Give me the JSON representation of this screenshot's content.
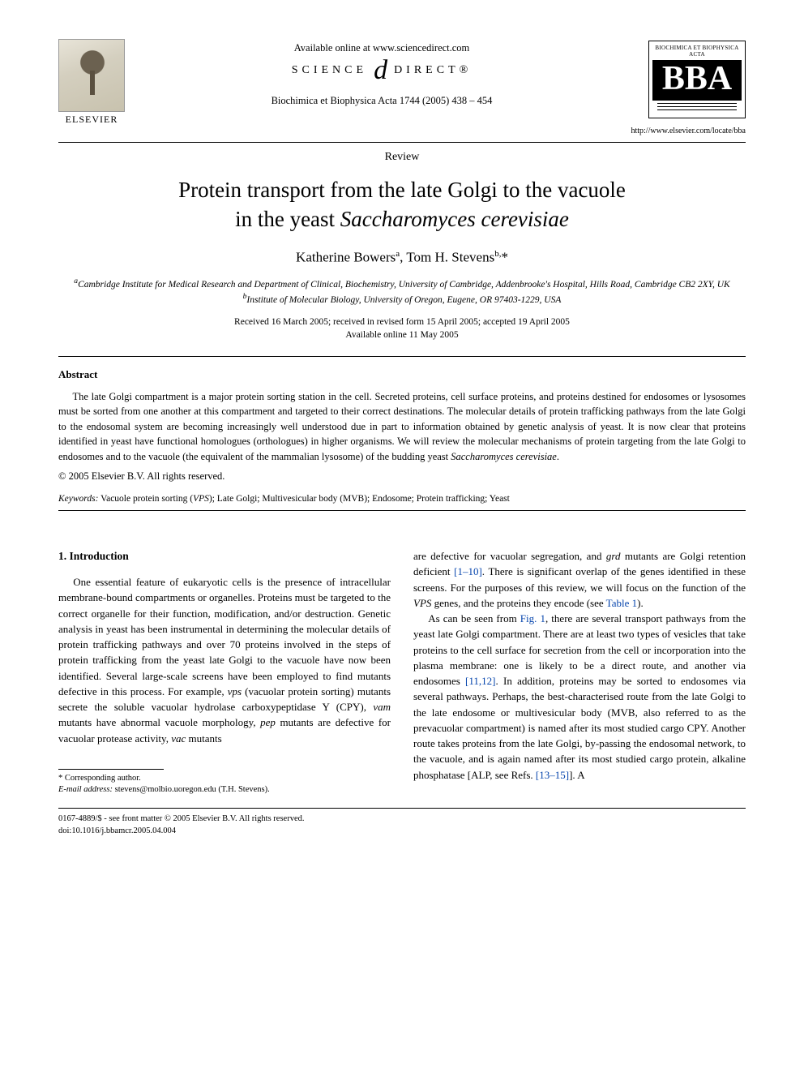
{
  "header": {
    "available_online": "Available online at www.sciencedirect.com",
    "sciencedirect_left": "SCIENCE",
    "sciencedirect_right": "DIRECT®",
    "journal_ref": "Biochimica et Biophysica Acta 1744 (2005) 438 – 454",
    "elsevier_label": "ELSEVIER",
    "bba_top": "BIOCHIMICA ET BIOPHYSICA ACTA",
    "bba_letters": "BBA",
    "bba_url": "http://www.elsevier.com/locate/bba"
  },
  "article": {
    "type_label": "Review",
    "title_line1": "Protein transport from the late Golgi to the vacuole",
    "title_line2_plain": "in the yeast ",
    "title_line2_ital": "Saccharomyces cerevisiae",
    "authors_html_a": "Katherine Bowers",
    "authors_sup_a": "a",
    "authors_sep": ", ",
    "authors_html_b": "Tom H. Stevens",
    "authors_sup_b": "b,",
    "authors_star": "*",
    "affil_a_sup": "a",
    "affil_a": "Cambridge Institute for Medical Research and Department of Clinical, Biochemistry, University of Cambridge, Addenbrooke's Hospital, Hills Road, Cambridge CB2 2XY, UK",
    "affil_b_sup": "b",
    "affil_b": "Institute of Molecular Biology, University of Oregon, Eugene, OR 97403-1229, USA",
    "dates_line1": "Received 16 March 2005; received in revised form 15 April 2005; accepted 19 April 2005",
    "dates_line2": "Available online 11 May 2005"
  },
  "abstract": {
    "heading": "Abstract",
    "body_pre": "The late Golgi compartment is a major protein sorting station in the cell. Secreted proteins, cell surface proteins, and proteins destined for endosomes or lysosomes must be sorted from one another at this compartment and targeted to their correct destinations. The molecular details of protein trafficking pathways from the late Golgi to the endosomal system are becoming increasingly well understood due in part to information obtained by genetic analysis of yeast. It is now clear that proteins identified in yeast have functional homologues (orthologues) in higher organisms. We will review the molecular mechanisms of protein targeting from the late Golgi to endosomes and to the vacuole (the equivalent of the mammalian lysosome) of the budding yeast ",
    "body_ital": "Saccharomyces cerevisiae",
    "body_post": ".",
    "copyright": "© 2005 Elsevier B.V. All rights reserved."
  },
  "keywords": {
    "label": "Keywords:",
    "text_pre": " Vacuole protein sorting (",
    "vps": "VPS",
    "text_post": "); Late Golgi; Multivesicular body (MVB); Endosome; Protein trafficking; Yeast"
  },
  "body": {
    "sec1_heading": "1. Introduction",
    "col1_p1_a": "One essential feature of eukaryotic cells is the presence of intracellular membrane-bound compartments or organelles. Proteins must be targeted to the correct organelle for their function, modification, and/or destruction. Genetic analysis in yeast has been instrumental in determining the molecular details of protein trafficking pathways and over 70 proteins involved in the steps of protein trafficking from the yeast late Golgi to the vacuole have now been identified. Several large-scale screens have been employed to find mutants defective in this process. For example, ",
    "vps_ital": "vps",
    "col1_p1_b": " (vacuolar protein sorting) mutants secrete the soluble vacuolar hydrolase carboxypeptidase Y (CPY), ",
    "vam_ital": "vam",
    "col1_p1_c": " mutants have abnormal vacuole morphology, ",
    "pep_ital": "pep",
    "col1_p1_d": " mutants are defective for vacuolar protease activity, ",
    "vac_ital": "vac",
    "col1_p1_e": " mutants",
    "col2_p1_a": "are defective for vacuolar segregation, and ",
    "grd_ital": "grd",
    "col2_p1_b": " mutants are Golgi retention deficient ",
    "ref_1_10": "[1–10]",
    "col2_p1_c": ". There is significant overlap of the genes identified in these screens. For the purposes of this review, we will focus on the function of the ",
    "VPS_ital": "VPS",
    "col2_p1_d": " genes, and the proteins they encode (see ",
    "table1": "Table 1",
    "col2_p1_e": ").",
    "col2_p2_a": "As can be seen from ",
    "fig1": "Fig. 1",
    "col2_p2_b": ", there are several transport pathways from the yeast late Golgi compartment. There are at least two types of vesicles that take proteins to the cell surface for secretion from the cell or incorporation into the plasma membrane: one is likely to be a direct route, and another via endosomes ",
    "ref_11_12": "[11,12]",
    "col2_p2_c": ". In addition, proteins may be sorted to endosomes via several pathways. Perhaps, the best-characterised route from the late Golgi to the late endosome or multivesicular body (MVB, also referred to as the prevacuolar compartment) is named after its most studied cargo CPY. Another route takes proteins from the late Golgi, by-passing the endosomal network, to the vacuole, and is again named after its most studied cargo protein, alkaline phosphatase [ALP, see Refs. ",
    "ref_13_15": "[13–15]",
    "col2_p2_d": "]. A"
  },
  "footnote": {
    "star": "* Corresponding author.",
    "email_label": "E-mail address:",
    "email": " stevens@molbio.uoregon.edu (T.H. Stevens)."
  },
  "bottom": {
    "line1": "0167-4889/$ - see front matter © 2005 Elsevier B.V. All rights reserved.",
    "line2": "doi:10.1016/j.bbamcr.2005.04.004"
  },
  "colors": {
    "link": "#0645ad",
    "text": "#000000",
    "bg": "#ffffff"
  }
}
